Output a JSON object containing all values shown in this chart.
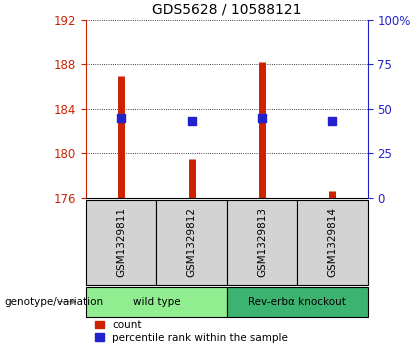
{
  "title": "GDS5628 / 10588121",
  "samples": [
    "GSM1329811",
    "GSM1329812",
    "GSM1329813",
    "GSM1329814"
  ],
  "count_values": [
    187.0,
    179.5,
    188.2,
    176.6
  ],
  "percentile_values": [
    183.2,
    182.9,
    183.2,
    182.9
  ],
  "count_base": 176.0,
  "ylim_left": [
    176,
    192
  ],
  "ylim_right": [
    0,
    100
  ],
  "yticks_left": [
    176,
    180,
    184,
    188,
    192
  ],
  "yticks_right": [
    0,
    25,
    50,
    75,
    100
  ],
  "ytick_labels_right": [
    "0",
    "25",
    "50",
    "75",
    "100%"
  ],
  "groups": [
    {
      "label": "wild type",
      "indices": [
        0,
        1
      ],
      "color": "#90ee90"
    },
    {
      "label": "Rev-erbα knockout",
      "indices": [
        2,
        3
      ],
      "color": "#3cb371"
    }
  ],
  "bar_color": "#cc2200",
  "dot_color": "#2222cc",
  "dot_size": 40,
  "left_axis_color": "#cc2200",
  "right_axis_color": "#2222cc",
  "background_label": "#d3d3d3",
  "genotype_label": "genotype/variation",
  "legend_items": [
    "count",
    "percentile rank within the sample"
  ]
}
